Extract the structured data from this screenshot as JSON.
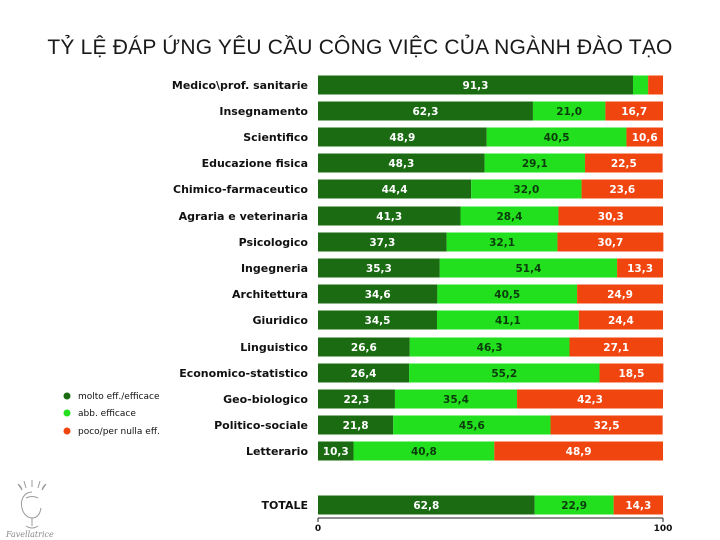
{
  "title": "TỶ LỆ ĐÁP ỨNG YÊU CẦU CÔNG VIỆC CỦA NGÀNH ĐÀO TẠO",
  "logo_text": "Favellatrice",
  "chart_data": {
    "type": "bar",
    "orientation": "horizontal",
    "stacked": true,
    "categories": [
      "Medico\\prof. sanitarie",
      "Insegnamento",
      "Scientifico",
      "Educazione fisica",
      "Chimico-farmaceutico",
      "Agraria e veterinaria",
      "Psicologico",
      "Ingegneria",
      "Architettura",
      "Giuridico",
      "Linguistico",
      "Economico-statistico",
      "Geo-biologico",
      "Politico-sociale",
      "Letterario",
      "TOTALE"
    ],
    "series": [
      {
        "name": "molto eff./efficace",
        "color": "#1a6b12",
        "values": [
          91.3,
          62.3,
          48.9,
          48.3,
          44.4,
          41.3,
          37.3,
          35.3,
          34.6,
          34.5,
          26.6,
          26.4,
          22.3,
          21.8,
          10.3,
          62.8
        ],
        "labels": [
          "91,3",
          "62,3",
          "48,9",
          "48,3",
          "44,4",
          "41,3",
          "37,3",
          "35,3",
          "34,6",
          "34,5",
          "26,6",
          "26,4",
          "22,3",
          "21,8",
          "10,3",
          "62,8"
        ]
      },
      {
        "name": "abb. efficace",
        "color": "#22e01e",
        "values": [
          4.4,
          21.0,
          40.5,
          29.1,
          32.0,
          28.4,
          32.1,
          51.4,
          40.5,
          41.1,
          46.3,
          55.2,
          35.4,
          45.6,
          40.8,
          22.9
        ],
        "labels": [
          "",
          "21,0",
          "40,5",
          "29,1",
          "32,0",
          "28,4",
          "32,1",
          "51,4",
          "40,5",
          "41,1",
          "46,3",
          "55,2",
          "35,4",
          "45,6",
          "40,8",
          "22,9"
        ]
      },
      {
        "name": "poco/per nulla eff.",
        "color": "#f0450f",
        "values": [
          4.3,
          16.7,
          10.6,
          22.5,
          23.6,
          30.3,
          30.7,
          13.3,
          24.9,
          24.4,
          27.1,
          18.5,
          42.3,
          32.5,
          48.9,
          14.3
        ],
        "labels": [
          "",
          "16,7",
          "10,6",
          "22,5",
          "23,6",
          "30,3",
          "30,7",
          "13,3",
          "24,9",
          "24,4",
          "27,1",
          "18,5",
          "42,3",
          "32,5",
          "48,9",
          "14,3"
        ]
      }
    ],
    "xlim": [
      0,
      100
    ],
    "x_ticks": [
      "0",
      "100"
    ],
    "legend_position": "left"
  }
}
